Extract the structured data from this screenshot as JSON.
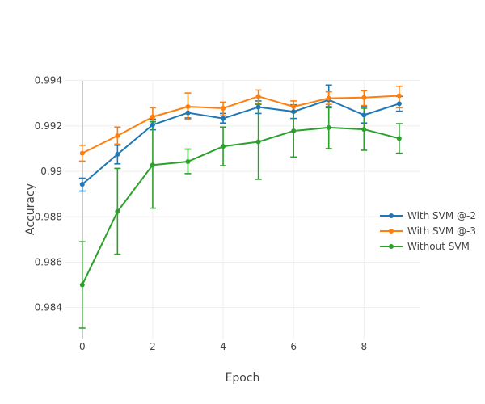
{
  "chart_data": {
    "type": "line",
    "title": "",
    "xlabel": "Epoch",
    "ylabel": "Accuracy",
    "xlim": [
      -0.5,
      9.6
    ],
    "ylim": [
      0.9826,
      0.9947
    ],
    "xticks": [
      0,
      2,
      4,
      6,
      8
    ],
    "xtick_labels": [
      "0",
      "2",
      "4",
      "6",
      "8"
    ],
    "yticks": [
      0.984,
      0.986,
      0.988,
      0.99,
      0.992,
      0.994
    ],
    "ytick_labels": [
      "0.984",
      "0.986",
      "0.988",
      "0.99",
      "0.992",
      "0.994"
    ],
    "grid": true,
    "legend_position": "right",
    "x": [
      0,
      1,
      2,
      3,
      4,
      5,
      6,
      7,
      8,
      9
    ],
    "series": [
      {
        "name": "With SVM @-2",
        "color": "#1f77b4",
        "values": [
          0.98943,
          0.99075,
          0.99205,
          0.99258,
          0.99233,
          0.99283,
          0.99263,
          0.99315,
          0.99248,
          0.99298
        ],
        "error_low": [
          0.98913,
          0.99033,
          0.99183,
          0.99235,
          0.99213,
          0.99255,
          0.99233,
          0.9928,
          0.99213,
          0.99265
        ],
        "error_high": [
          0.9897,
          0.99115,
          0.9923,
          0.99283,
          0.99255,
          0.9931,
          0.99293,
          0.9938,
          0.99285,
          0.9933
        ]
      },
      {
        "name": "With SVM @-3",
        "color": "#ff7f0e",
        "values": [
          0.9908,
          0.99157,
          0.9924,
          0.99285,
          0.99278,
          0.9933,
          0.99285,
          0.99322,
          0.99325,
          0.99333
        ],
        "error_low": [
          0.99045,
          0.9912,
          0.9922,
          0.9923,
          0.99245,
          0.993,
          0.9926,
          0.99295,
          0.9929,
          0.9928
        ],
        "error_high": [
          0.99115,
          0.99195,
          0.9928,
          0.99345,
          0.99305,
          0.99358,
          0.9931,
          0.9935,
          0.99355,
          0.99375
        ]
      },
      {
        "name": "Without SVM",
        "color": "#2ca02c",
        "values": [
          0.985,
          0.98823,
          0.99028,
          0.99043,
          0.9911,
          0.9913,
          0.99178,
          0.99193,
          0.99185,
          0.99145
        ],
        "error_low": [
          0.9831,
          0.98635,
          0.98838,
          0.9899,
          0.99025,
          0.98965,
          0.99063,
          0.991,
          0.99093,
          0.9908
        ],
        "error_high": [
          0.9869,
          0.99013,
          0.99218,
          0.99098,
          0.99195,
          0.99295,
          0.99293,
          0.99285,
          0.99278,
          0.9921
        ]
      }
    ]
  }
}
